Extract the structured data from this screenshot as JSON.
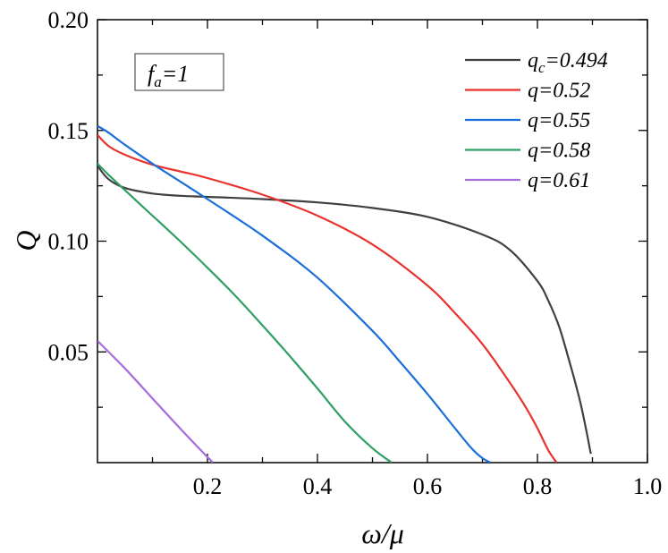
{
  "chart_data": {
    "type": "line",
    "title": "",
    "xlabel": "ω/μ",
    "ylabel": "Q",
    "xlim": [
      0.0,
      1.0
    ],
    "ylim": [
      0.0,
      0.2
    ],
    "xticks": [
      0.2,
      0.4,
      0.6,
      0.8,
      1.0
    ],
    "xtick_labels": [
      "0.2",
      "0.4",
      "0.6",
      "0.8",
      "1.0"
    ],
    "yticks": [
      0.05,
      0.1,
      0.15,
      0.2
    ],
    "ytick_labels": [
      "0.05",
      "0.10",
      "0.15",
      "0.20"
    ],
    "grid": false,
    "legend_position": "top-right",
    "annotation": {
      "main": "f",
      "sub": "a",
      "rest": "=1"
    },
    "series": [
      {
        "name": "q_c=0.494",
        "label_main": "q",
        "label_sub": "c",
        "label_rest": "=0.494",
        "color": "#404040",
        "x": [
          0.0,
          0.02,
          0.05,
          0.1,
          0.15,
          0.2,
          0.3,
          0.4,
          0.5,
          0.6,
          0.7,
          0.75,
          0.8,
          0.82,
          0.84,
          0.86,
          0.87,
          0.88,
          0.89,
          0.897
        ],
        "y": [
          0.134,
          0.128,
          0.124,
          0.1215,
          0.1205,
          0.12,
          0.119,
          0.1175,
          0.115,
          0.111,
          0.103,
          0.096,
          0.082,
          0.073,
          0.061,
          0.044,
          0.035,
          0.025,
          0.013,
          0.004
        ]
      },
      {
        "name": "q=0.52",
        "label_main": "q",
        "label_sub": "",
        "label_rest": "=0.52",
        "color": "#e8332f",
        "x": [
          0.0,
          0.02,
          0.05,
          0.1,
          0.15,
          0.2,
          0.3,
          0.4,
          0.5,
          0.6,
          0.65,
          0.7,
          0.75,
          0.78,
          0.8,
          0.82,
          0.835
        ],
        "y": [
          0.148,
          0.143,
          0.139,
          0.1345,
          0.1315,
          0.1285,
          0.121,
          0.1115,
          0.0985,
          0.08,
          0.0675,
          0.0535,
          0.036,
          0.0245,
          0.0155,
          0.0055,
          0.0
        ]
      },
      {
        "name": "q=0.55",
        "label_main": "q",
        "label_sub": "",
        "label_rest": "=0.55",
        "color": "#1c6fd9",
        "x": [
          0.0,
          0.02,
          0.05,
          0.1,
          0.15,
          0.2,
          0.3,
          0.4,
          0.5,
          0.55,
          0.6,
          0.65,
          0.68,
          0.7,
          0.715
        ],
        "y": [
          0.152,
          0.149,
          0.1435,
          0.135,
          0.127,
          0.119,
          0.1025,
          0.0835,
          0.0595,
          0.0455,
          0.031,
          0.0155,
          0.0065,
          0.002,
          0.0
        ]
      },
      {
        "name": "q=0.58",
        "label_main": "q",
        "label_sub": "",
        "label_rest": "=0.58",
        "color": "#2f9e63",
        "x": [
          0.0,
          0.02,
          0.05,
          0.1,
          0.15,
          0.2,
          0.25,
          0.3,
          0.35,
          0.4,
          0.45,
          0.5,
          0.535
        ],
        "y": [
          0.135,
          0.13,
          0.123,
          0.1115,
          0.1,
          0.088,
          0.0755,
          0.062,
          0.048,
          0.0335,
          0.0185,
          0.0065,
          0.0
        ]
      },
      {
        "name": "q=0.61",
        "label_main": "q",
        "label_sub": "",
        "label_rest": "=0.61",
        "color": "#a56cdb",
        "x": [
          0.0,
          0.05,
          0.1,
          0.15,
          0.2,
          0.21
        ],
        "y": [
          0.055,
          0.0425,
          0.029,
          0.0155,
          0.0025,
          0.0
        ]
      }
    ]
  }
}
